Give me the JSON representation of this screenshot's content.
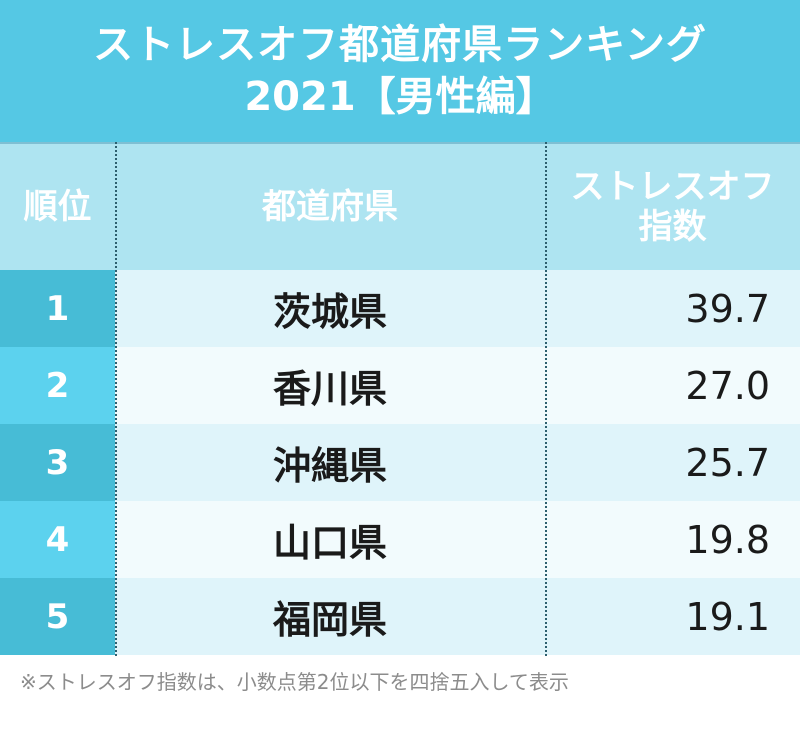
{
  "title": {
    "line1": "ストレスオフ都道府県ランキング",
    "line2": "2021【男性編】"
  },
  "table": {
    "headers": {
      "rank": "順位",
      "prefecture": "都道府県",
      "score_line1": "ストレスオフ",
      "score_line2": "指数"
    },
    "rows": [
      {
        "rank": "1",
        "prefecture": "茨城県",
        "score": "39.7"
      },
      {
        "rank": "2",
        "prefecture": "香川県",
        "score": "27.0"
      },
      {
        "rank": "3",
        "prefecture": "沖縄県",
        "score": "25.7"
      },
      {
        "rank": "4",
        "prefecture": "山口県",
        "score": "19.8"
      },
      {
        "rank": "5",
        "prefecture": "福岡県",
        "score": "19.1"
      }
    ]
  },
  "footnote": "※ストレスオフ指数は、小数点第2位以下を四捨五入して表示",
  "colors": {
    "title_band": "#55c8e4",
    "header_band": "#aee4f1",
    "rank_cell_odd": "#47bcd6",
    "rank_cell_even": "#5cd2ee",
    "row_odd": "#dff4fa",
    "row_even": "#f2fbfd"
  },
  "chart_data": {
    "type": "table",
    "title": "ストレスオフ都道府県ランキング 2021【男性編】",
    "columns": [
      "順位",
      "都道府県",
      "ストレスオフ指数"
    ],
    "categories": [
      "茨城県",
      "香川県",
      "沖縄県",
      "山口県",
      "福岡県"
    ],
    "values": [
      39.7,
      27.0,
      25.7,
      19.8,
      19.1
    ]
  }
}
